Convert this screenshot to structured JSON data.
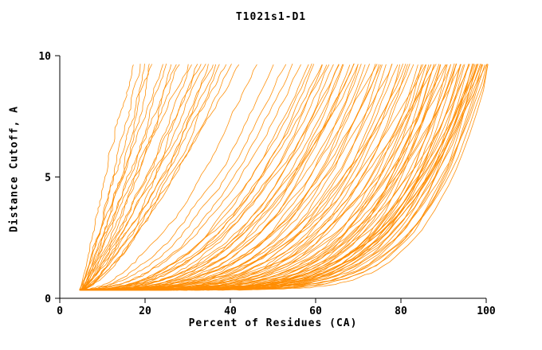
{
  "chart_data": {
    "type": "line",
    "title": "T1021s1-D1",
    "xlabel": "Percent of Residues (CA)",
    "ylabel": "Distance Cutoff, A",
    "xlim": [
      0,
      100
    ],
    "ylim": [
      0,
      10
    ],
    "xticks": [
      0,
      20,
      40,
      60,
      80,
      100
    ],
    "yticks": [
      0,
      5,
      10
    ],
    "grid": false,
    "legend": "none",
    "line_color": "#ff8c00",
    "background": "#ffffff",
    "y_start": 0.35,
    "y_end": 9.65,
    "series_note": "Each curve: [start_percent, end_percent_at_top_cutoff, shape_exponent]; y = y_start + (y_end - y_start) * t^k, x = start + (end - start) * t",
    "series": [
      [
        4.8,
        17,
        1.0
      ],
      [
        5.0,
        19,
        1.05
      ],
      [
        5.2,
        21,
        0.95
      ],
      [
        4.6,
        22,
        1.1
      ],
      [
        5.5,
        24,
        1.0
      ],
      [
        4.9,
        25,
        1.2
      ],
      [
        5.1,
        27,
        1.05
      ],
      [
        5.3,
        28,
        1.15
      ],
      [
        4.7,
        30,
        1.0
      ],
      [
        5.0,
        31,
        1.25
      ],
      [
        5.2,
        33,
        1.1
      ],
      [
        4.8,
        34,
        1.3
      ],
      [
        5.4,
        36,
        1.15
      ],
      [
        5.0,
        37,
        1.35
      ],
      [
        4.9,
        39,
        1.2
      ],
      [
        5.1,
        40,
        1.4
      ],
      [
        5.3,
        42,
        1.25
      ],
      [
        4.7,
        20,
        1.5
      ],
      [
        5.0,
        26,
        1.45
      ],
      [
        5.2,
        32,
        1.5
      ],
      [
        4.9,
        38,
        1.55
      ],
      [
        5.1,
        35,
        1.6
      ],
      [
        5.0,
        46,
        1.8
      ],
      [
        5.2,
        50,
        1.9
      ],
      [
        4.8,
        53,
        2.0
      ],
      [
        5.1,
        55,
        2.1
      ],
      [
        5.0,
        56,
        2.2
      ],
      [
        5.0,
        58,
        2.4
      ],
      [
        5.0,
        59,
        2.3
      ],
      [
        5.0,
        60,
        2.6
      ],
      [
        5.0,
        61,
        2.4
      ],
      [
        5.0,
        62,
        2.8
      ],
      [
        5.0,
        63,
        2.5
      ],
      [
        5.0,
        64,
        3.0
      ],
      [
        5.0,
        65,
        2.7
      ],
      [
        5.0,
        66,
        3.2
      ],
      [
        5.0,
        67,
        2.9
      ],
      [
        5.0,
        68,
        3.4
      ],
      [
        5.0,
        69,
        3.0
      ],
      [
        5.0,
        70,
        3.6
      ],
      [
        5.0,
        71,
        3.1
      ],
      [
        5.0,
        72,
        3.8
      ],
      [
        5.0,
        73,
        3.3
      ],
      [
        5.0,
        74,
        4.0
      ],
      [
        5.0,
        75,
        3.5
      ],
      [
        5.0,
        76,
        4.2
      ],
      [
        5.0,
        77,
        3.6
      ],
      [
        5.0,
        78,
        4.4
      ],
      [
        5.0,
        79,
        3.8
      ],
      [
        5.0,
        80,
        4.6
      ],
      [
        5.0,
        81,
        3.9
      ],
      [
        5.0,
        82,
        4.8
      ],
      [
        5.0,
        83,
        4.0
      ],
      [
        5.0,
        84,
        5.0
      ],
      [
        5.0,
        85,
        4.2
      ],
      [
        5.0,
        86,
        5.2
      ],
      [
        5.0,
        87,
        4.3
      ],
      [
        5.0,
        88,
        5.4
      ],
      [
        5.0,
        89,
        4.5
      ],
      [
        5.0,
        90,
        5.6
      ],
      [
        5.0,
        91,
        4.6
      ],
      [
        5.0,
        92,
        5.8
      ],
      [
        5.0,
        93,
        4.8
      ],
      [
        5.0,
        94,
        6.0
      ],
      [
        5.0,
        95,
        5.0
      ],
      [
        5.0,
        96,
        6.2
      ],
      [
        5.0,
        97,
        5.2
      ],
      [
        5.0,
        98,
        6.4
      ],
      [
        5.0,
        99,
        5.4
      ],
      [
        5.0,
        100,
        6.5
      ],
      [
        5.5,
        86,
        3.0
      ],
      [
        5.5,
        88,
        3.2
      ],
      [
        5.5,
        90,
        3.4
      ],
      [
        5.5,
        92,
        3.6
      ],
      [
        5.5,
        94,
        3.8
      ],
      [
        5.5,
        96,
        4.0
      ],
      [
        5.5,
        98,
        4.2
      ],
      [
        5.5,
        100,
        4.4
      ],
      [
        4.6,
        87,
        6.0
      ],
      [
        4.6,
        89,
        6.2
      ],
      [
        4.6,
        91,
        6.4
      ],
      [
        4.6,
        93,
        6.6
      ],
      [
        4.6,
        95,
        6.8
      ],
      [
        4.6,
        97,
        7.0
      ],
      [
        4.6,
        99,
        7.2
      ],
      [
        5.2,
        85,
        5.5
      ],
      [
        5.2,
        88,
        5.7
      ],
      [
        5.2,
        91,
        5.9
      ],
      [
        5.2,
        94,
        6.1
      ],
      [
        5.2,
        97,
        6.3
      ],
      [
        5.2,
        100,
        6.5
      ],
      [
        4.8,
        66,
        2.3
      ],
      [
        4.8,
        70,
        2.5
      ],
      [
        4.8,
        74,
        2.7
      ],
      [
        4.8,
        78,
        2.9
      ],
      [
        4.8,
        82,
        3.1
      ],
      [
        5.3,
        63,
        2.2
      ],
      [
        5.3,
        69,
        2.6
      ],
      [
        5.3,
        75,
        3.0
      ],
      [
        5.3,
        81,
        3.4
      ],
      [
        5.3,
        87,
        3.8
      ],
      [
        5.3,
        93,
        4.2
      ],
      [
        5.3,
        99,
        4.6
      ],
      [
        4.9,
        96,
        5.0
      ],
      [
        4.9,
        98,
        5.3
      ],
      [
        4.9,
        100,
        5.6
      ],
      [
        5.1,
        97,
        4.8
      ],
      [
        5.1,
        99,
        5.1
      ],
      [
        5.0,
        98,
        7.5
      ],
      [
        5.0,
        100,
        7.8
      ]
    ]
  }
}
